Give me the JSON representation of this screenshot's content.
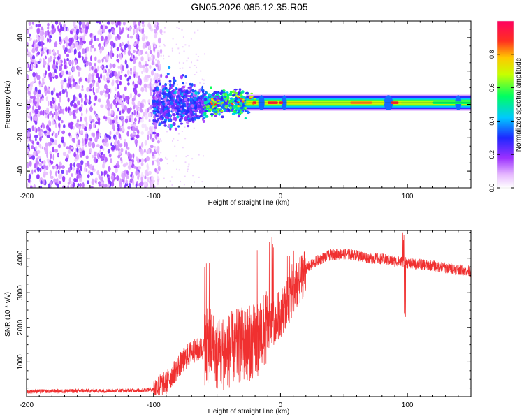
{
  "title": "GN05.2026.085.12.35.R05",
  "chart_data": [
    {
      "type": "heatmap",
      "title": "GN05.2026.085.12.35.R05",
      "xlabel": "Height of straight line (km)",
      "ylabel": "Frequency (Hz)",
      "xlim": [
        -200,
        150
      ],
      "ylim": [
        -50,
        50
      ],
      "x_ticks": [
        -200,
        -100,
        0,
        100
      ],
      "x_tick_labels": [
        "-200",
        "-100",
        "0",
        "100"
      ],
      "y_ticks": [
        -40,
        -20,
        0,
        20,
        40
      ],
      "y_tick_labels": [
        "-40",
        "-20",
        "0",
        "20",
        "40"
      ],
      "colorbar": {
        "label": "Normalized spectral amplitude",
        "range": [
          0,
          1
        ],
        "ticks": [
          0,
          0.2,
          0.4,
          0.6,
          0.8
        ],
        "tick_labels": [
          "0.0",
          "0.2",
          "0.4",
          "0.6",
          "0.8"
        ],
        "colormap": "rainbow (white-magenta-blue-cyan-green-yellow-red)"
      },
      "regions": [
        {
          "x_range": [
            -200,
            -100
          ],
          "freq_range": [
            -50,
            50
          ],
          "amplitude": 0.05,
          "description": "broadband noise"
        },
        {
          "x_range": [
            -100,
            -60
          ],
          "freq_range": [
            -20,
            15
          ],
          "amplitude": 0.15,
          "description": "scattered"
        },
        {
          "x_range": [
            -60,
            -25
          ],
          "freq_range": [
            -8,
            8
          ],
          "amplitude": 0.35,
          "description": "narrowing"
        },
        {
          "x_range": [
            -25,
            150
          ],
          "freq_center": 1,
          "freq_halfwidth": 3,
          "peak_amplitude": 0.95,
          "description": "stable carrier line"
        }
      ]
    },
    {
      "type": "line",
      "xlabel": "Height of straight line (km)",
      "ylabel": "SNR (10 * v/v)",
      "xlim": [
        -200,
        150
      ],
      "ylim": [
        0,
        4800
      ],
      "x_ticks": [
        -200,
        -100,
        0,
        100
      ],
      "x_tick_labels": [
        "-200",
        "-100",
        "0",
        "100"
      ],
      "y_ticks": [
        1000,
        2000,
        3000,
        4000
      ],
      "y_tick_labels": [
        "1000",
        "2000",
        "3000",
        "4000"
      ],
      "series": [
        {
          "name": "SNR",
          "color": "#f03030",
          "x": [
            -200,
            -150,
            -110,
            -100,
            -90,
            -80,
            -70,
            -60,
            -55,
            -50,
            -40,
            -30,
            -20,
            -15,
            -10,
            0,
            10,
            20,
            30,
            40,
            50,
            60,
            70,
            80,
            90,
            97,
            100,
            110,
            120,
            130,
            140,
            150
          ],
          "y": [
            150,
            170,
            180,
            220,
            400,
            900,
            1300,
            1400,
            1500,
            1200,
            1350,
            1500,
            1600,
            1800,
            2000,
            2400,
            3000,
            3700,
            3950,
            4100,
            4120,
            4080,
            4000,
            3980,
            3900,
            3900,
            3850,
            3820,
            3780,
            3720,
            3680,
            3620
          ]
        }
      ]
    }
  ]
}
